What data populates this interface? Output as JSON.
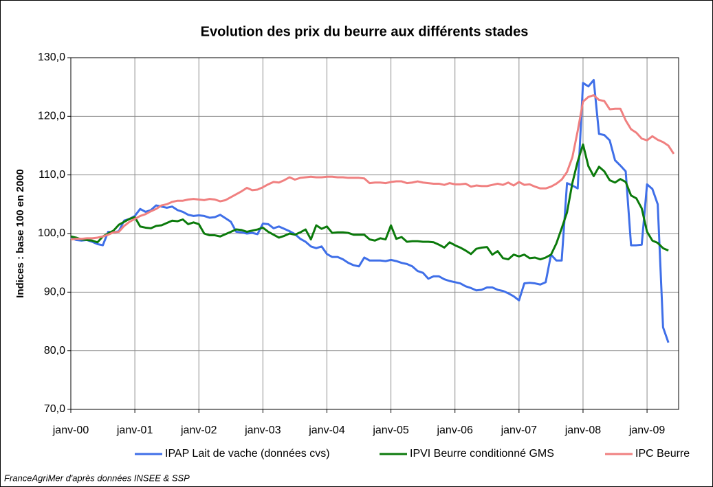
{
  "chart_data": {
    "type": "line",
    "title": "Evolution des prix du beurre aux différents stades",
    "ylabel": "Indices : base 100 en 2000",
    "source": "FranceAgriMer d'après données INSEE & SSP",
    "legend": "bottom",
    "grid": true,
    "ylim": [
      70,
      130
    ],
    "yticks": [
      {
        "value": 70,
        "label": "70,0"
      },
      {
        "value": 80,
        "label": "80,0"
      },
      {
        "value": 90,
        "label": "90,0"
      },
      {
        "value": 100,
        "label": "100,0"
      },
      {
        "value": 110,
        "label": "110,0"
      },
      {
        "value": 120,
        "label": "120,0"
      },
      {
        "value": 130,
        "label": "130,0"
      }
    ],
    "categories": [
      "janv-00",
      null,
      null,
      null,
      null,
      null,
      null,
      null,
      null,
      null,
      null,
      null,
      "janv-01",
      null,
      null,
      null,
      null,
      null,
      null,
      null,
      null,
      null,
      null,
      null,
      "janv-02",
      null,
      null,
      null,
      null,
      null,
      null,
      null,
      null,
      null,
      null,
      null,
      "janv-03",
      null,
      null,
      null,
      null,
      null,
      null,
      null,
      null,
      null,
      null,
      null,
      "janv-04",
      null,
      null,
      null,
      null,
      null,
      null,
      null,
      null,
      null,
      null,
      null,
      "janv-05",
      null,
      null,
      null,
      null,
      null,
      null,
      null,
      null,
      null,
      null,
      null,
      "janv-06",
      null,
      null,
      null,
      null,
      null,
      null,
      null,
      null,
      null,
      null,
      null,
      "janv-07",
      null,
      null,
      null,
      null,
      null,
      null,
      null,
      null,
      null,
      null,
      null,
      "janv-08",
      null,
      null,
      null,
      null,
      null,
      null,
      null,
      null,
      null,
      null,
      null,
      "janv-09",
      null,
      null,
      null,
      null,
      null
    ],
    "series": [
      {
        "name": "IPAP Lait de vache (données cvs)",
        "color": "#3f6fe8",
        "values": [
          99.3,
          98.9,
          98.8,
          98.9,
          98.6,
          98.2,
          98.0,
          100.3,
          100.2,
          100.4,
          102.2,
          102.5,
          103.0,
          104.2,
          103.7,
          104.0,
          104.8,
          104.6,
          104.4,
          104.6,
          104.0,
          103.7,
          103.2,
          103.0,
          103.1,
          103.0,
          102.7,
          102.8,
          103.2,
          102.6,
          102.0,
          100.3,
          100.2,
          100.0,
          100.1,
          99.9,
          101.7,
          101.6,
          100.9,
          101.2,
          100.8,
          100.4,
          99.9,
          99.1,
          98.6,
          97.8,
          97.5,
          97.8,
          96.5,
          96.0,
          96.0,
          95.6,
          95.0,
          94.6,
          94.4,
          95.9,
          95.4,
          95.4,
          95.4,
          95.3,
          95.5,
          95.3,
          95.0,
          94.8,
          94.4,
          93.6,
          93.3,
          92.3,
          92.7,
          92.7,
          92.2,
          91.9,
          91.7,
          91.5,
          91.0,
          90.7,
          90.3,
          90.4,
          90.8,
          90.8,
          90.4,
          90.2,
          89.8,
          89.3,
          88.6,
          91.5,
          91.6,
          91.5,
          91.3,
          91.7,
          96.4,
          95.4,
          95.4,
          108.6,
          108.2,
          107.7,
          125.7,
          125.1,
          126.2,
          117.0,
          116.8,
          115.9,
          112.5,
          111.6,
          110.6,
          98.0,
          98.0,
          98.1,
          108.4,
          107.6,
          105.0,
          84.0,
          81.4,
          null
        ]
      },
      {
        "name": "IPVI Beurre conditionné GMS",
        "color": "#0b7a0b",
        "values": [
          99.5,
          99.3,
          99.0,
          98.9,
          98.8,
          98.5,
          99.5,
          100.0,
          100.5,
          101.5,
          102.0,
          102.5,
          102.8,
          101.2,
          101.0,
          100.9,
          101.3,
          101.4,
          101.8,
          102.2,
          102.1,
          102.4,
          101.6,
          101.9,
          101.6,
          100.0,
          99.7,
          99.7,
          99.5,
          99.9,
          100.3,
          100.7,
          100.6,
          100.3,
          100.5,
          100.7,
          101.0,
          100.3,
          99.8,
          99.3,
          99.6,
          100.0,
          99.8,
          100.2,
          100.7,
          99.0,
          101.4,
          100.8,
          101.2,
          100.1,
          100.2,
          100.2,
          100.1,
          99.8,
          99.8,
          99.8,
          99.0,
          98.8,
          99.2,
          99.0,
          101.4,
          99.1,
          99.4,
          98.6,
          98.7,
          98.7,
          98.6,
          98.6,
          98.5,
          98.1,
          97.6,
          98.5,
          98.0,
          97.6,
          97.1,
          96.5,
          97.4,
          97.6,
          97.7,
          96.4,
          97.0,
          95.8,
          95.6,
          96.4,
          96.1,
          96.4,
          95.8,
          95.9,
          95.6,
          95.9,
          96.4,
          98.3,
          100.9,
          103.6,
          108.6,
          112.3,
          115.2,
          111.5,
          109.8,
          111.4,
          110.6,
          109.1,
          108.7,
          109.3,
          108.8,
          106.5,
          106.0,
          104.3,
          100.3,
          98.8,
          98.4,
          97.5,
          97.1,
          null
        ]
      },
      {
        "name": "IPC Beurre",
        "color": "#f08080",
        "values": [
          99.0,
          99.1,
          99.1,
          99.2,
          99.2,
          99.3,
          99.5,
          99.8,
          100.2,
          100.3,
          101.3,
          102.0,
          102.5,
          103.0,
          103.3,
          103.8,
          104.2,
          104.8,
          105.0,
          105.4,
          105.6,
          105.6,
          105.8,
          105.9,
          105.8,
          105.7,
          105.9,
          105.8,
          105.5,
          105.7,
          106.2,
          106.7,
          107.2,
          107.8,
          107.4,
          107.5,
          107.9,
          108.4,
          108.8,
          108.7,
          109.1,
          109.6,
          109.2,
          109.5,
          109.6,
          109.7,
          109.6,
          109.6,
          109.7,
          109.7,
          109.6,
          109.6,
          109.5,
          109.5,
          109.5,
          109.4,
          108.6,
          108.7,
          108.7,
          108.6,
          108.8,
          108.9,
          108.9,
          108.6,
          108.7,
          108.9,
          108.7,
          108.6,
          108.5,
          108.5,
          108.3,
          108.6,
          108.4,
          108.4,
          108.5,
          108.0,
          108.2,
          108.1,
          108.1,
          108.3,
          108.5,
          108.3,
          108.7,
          108.2,
          108.8,
          108.3,
          108.4,
          108.0,
          107.7,
          107.7,
          108.0,
          108.5,
          109.2,
          110.5,
          113.0,
          117.5,
          122.5,
          123.3,
          123.6,
          122.8,
          122.6,
          121.2,
          121.3,
          121.3,
          119.3,
          117.8,
          117.2,
          116.2,
          115.9,
          116.6,
          116.0,
          115.6,
          115.0,
          113.6
        ]
      }
    ]
  }
}
